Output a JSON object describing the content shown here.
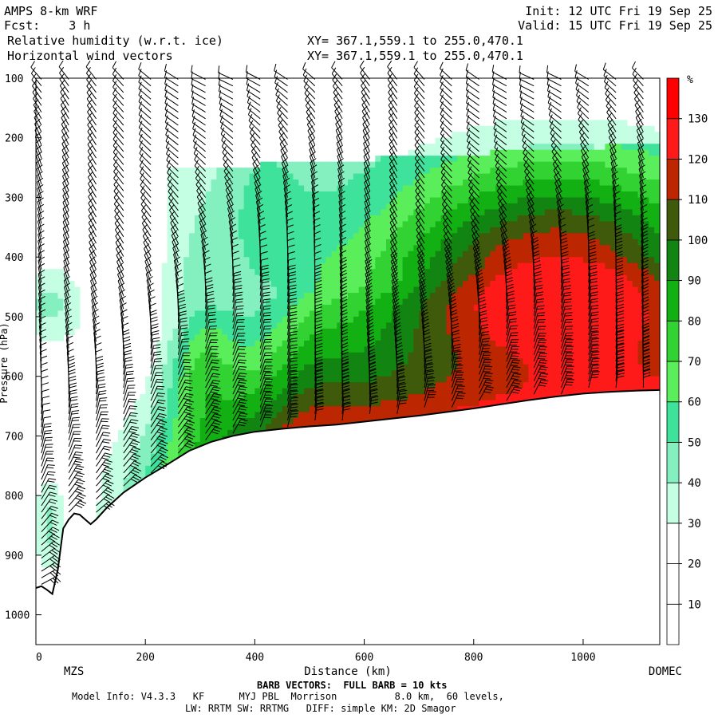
{
  "header": {
    "model": "AMPS 8-km WRF",
    "init": "Init: 12 UTC Fri 19 Sep 25",
    "fcst": "Fcst:    3 h",
    "valid": "Valid: 15 UTC Fri 19 Sep 25",
    "field1": "Relative humidity (w.r.t. ice)",
    "xy1": "XY= 367.1,559.1 to 255.0,470.1",
    "field2": "Horizontal wind vectors",
    "xy2": "XY= 367.1,559.1 to 255.0,470.1"
  },
  "footer": {
    "barb_note": "BARB VECTORS:  FULL BARB = 10 kts",
    "model_info": "Model Info: V4.3.3   KF      MYJ PBL  Morrison          8.0 km,  60 levels,",
    "physics": "LW: RRTM SW: RRTMG   DIFF: simple KM: 2D Smagor"
  },
  "chart_data": {
    "type": "heatmap",
    "title": "Relative humidity (w.r.t. ice) cross section with horizontal wind barbs",
    "xlabel": "Distance (km)",
    "ylabel": "Pressure (hPa)",
    "xlim": [
      0,
      1140
    ],
    "ylim": [
      1050,
      100
    ],
    "x_ticks": [
      0,
      200,
      400,
      600,
      800,
      1000
    ],
    "y_ticks": [
      100,
      200,
      300,
      400,
      500,
      600,
      700,
      800,
      900,
      1000
    ],
    "endpoints": [
      "MZS",
      "DOMEC"
    ],
    "colorbar": {
      "unit": "%",
      "levels": [
        10,
        20,
        30,
        40,
        50,
        60,
        70,
        80,
        90,
        100,
        110,
        120,
        130
      ],
      "colors": [
        "#ffffff",
        "#ffffff",
        "#ffffff",
        "#c4ffe4",
        "#84f0c0",
        "#3ee29a",
        "#5aee5a",
        "#32d232",
        "#12b012",
        "#128412",
        "#3e5a0a",
        "#bc2600",
        "#ff1a1a"
      ]
    },
    "terrain_surface": [
      [
        0,
        955
      ],
      [
        10,
        952
      ],
      [
        20,
        958
      ],
      [
        30,
        965
      ],
      [
        40,
        925
      ],
      [
        50,
        855
      ],
      [
        60,
        840
      ],
      [
        70,
        830
      ],
      [
        80,
        832
      ],
      [
        90,
        840
      ],
      [
        100,
        848
      ],
      [
        110,
        840
      ],
      [
        130,
        820
      ],
      [
        160,
        795
      ],
      [
        200,
        770
      ],
      [
        240,
        748
      ],
      [
        280,
        725
      ],
      [
        320,
        710
      ],
      [
        360,
        700
      ],
      [
        400,
        693
      ],
      [
        450,
        688
      ],
      [
        500,
        684
      ],
      [
        550,
        681
      ],
      [
        600,
        676
      ],
      [
        650,
        671
      ],
      [
        700,
        666
      ],
      [
        750,
        660
      ],
      [
        800,
        654
      ],
      [
        850,
        647
      ],
      [
        900,
        640
      ],
      [
        950,
        634
      ],
      [
        1000,
        629
      ],
      [
        1050,
        626
      ],
      [
        1100,
        624
      ],
      [
        1140,
        623
      ]
    ],
    "barb_columns_km": [
      10,
      60,
      110,
      160,
      210,
      260,
      310,
      360,
      410,
      460,
      510,
      560,
      610,
      660,
      710,
      760,
      810,
      860,
      910,
      960,
      1010,
      1060,
      1110
    ]
  }
}
